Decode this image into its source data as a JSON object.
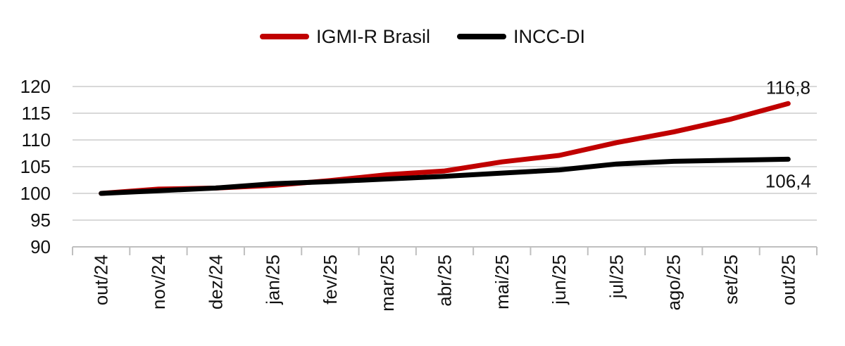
{
  "chart_data": {
    "type": "line",
    "categories": [
      "out/24",
      "nov/24",
      "dez/24",
      "jan/25",
      "fev/25",
      "mar/25",
      "abr/25",
      "mai/25",
      "jun/25",
      "jul/25",
      "ago/25",
      "set/25",
      "out/25"
    ],
    "series": [
      {
        "name": "IGMI-R Brasil",
        "color": "#c00000",
        "values": [
          100.0,
          100.8,
          101.0,
          101.5,
          102.4,
          103.5,
          104.2,
          105.9,
          107.1,
          109.5,
          111.5,
          113.9,
          116.8
        ]
      },
      {
        "name": "INCC-DI",
        "color": "#000000",
        "values": [
          100.0,
          100.5,
          101.0,
          101.8,
          102.2,
          102.7,
          103.2,
          103.8,
          104.4,
          105.5,
          106.0,
          106.2,
          106.4
        ]
      }
    ],
    "ylim": [
      90,
      120
    ],
    "yticks": [
      "90",
      "95",
      "100",
      "105",
      "110",
      "115",
      "120"
    ],
    "grid": true,
    "legend": "top-center",
    "annotations": [
      {
        "series": 0,
        "index": 12,
        "text": "116,8",
        "position": "above"
      },
      {
        "series": 1,
        "index": 12,
        "text": "106,4",
        "position": "below"
      }
    ]
  }
}
